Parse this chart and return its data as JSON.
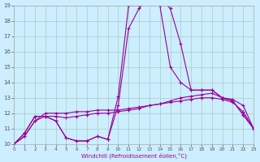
{
  "xlabel": "Windchill (Refroidissement éolien,°C)",
  "bg_color": "#cceeff",
  "line_color": "#990099",
  "grid_color": "#aaccbb",
  "xmin": 0,
  "xmax": 23,
  "ymin": 10,
  "ymax": 19,
  "line1_x": [
    0,
    1,
    2,
    3,
    4,
    5,
    6,
    7,
    8,
    9,
    10,
    11,
    12,
    13,
    14,
    15,
    16,
    17,
    18,
    19,
    20,
    21,
    22,
    23
  ],
  "line1_y": [
    10.0,
    10.7,
    11.8,
    11.8,
    11.5,
    10.4,
    10.2,
    10.2,
    10.5,
    10.3,
    13.1,
    19.0,
    19.0,
    19.3,
    19.5,
    18.8,
    16.5,
    13.5,
    13.5,
    13.5,
    13.0,
    12.8,
    11.9,
    11.0
  ],
  "line2_x": [
    0,
    1,
    2,
    3,
    4,
    5,
    6,
    7,
    8,
    9,
    10,
    11,
    12,
    13,
    14,
    15,
    16,
    17,
    18,
    19,
    20,
    21,
    22,
    23
  ],
  "line2_y": [
    10.0,
    10.7,
    11.8,
    11.8,
    11.5,
    10.4,
    10.2,
    10.2,
    10.5,
    10.3,
    12.5,
    17.5,
    18.8,
    19.5,
    19.0,
    15.0,
    14.0,
    13.5,
    13.5,
    13.5,
    13.0,
    12.8,
    11.9,
    11.0
  ],
  "line3_x": [
    0,
    1,
    2,
    3,
    4,
    5,
    6,
    7,
    8,
    9,
    10,
    11,
    12,
    13,
    14,
    15,
    16,
    17,
    18,
    19,
    20,
    21,
    22,
    23
  ],
  "line3_y": [
    10.0,
    10.5,
    11.5,
    11.8,
    11.8,
    11.7,
    11.8,
    11.9,
    12.0,
    12.0,
    12.1,
    12.2,
    12.3,
    12.5,
    12.6,
    12.8,
    13.0,
    13.1,
    13.2,
    13.3,
    13.0,
    12.9,
    12.5,
    11.0
  ],
  "line4_x": [
    0,
    1,
    2,
    3,
    4,
    5,
    6,
    7,
    8,
    9,
    10,
    11,
    12,
    13,
    14,
    15,
    16,
    17,
    18,
    19,
    20,
    21,
    22,
    23
  ],
  "line4_y": [
    10.0,
    10.5,
    11.5,
    12.0,
    12.0,
    12.0,
    12.1,
    12.1,
    12.2,
    12.2,
    12.2,
    12.3,
    12.4,
    12.5,
    12.6,
    12.7,
    12.8,
    12.9,
    13.0,
    13.0,
    12.9,
    12.7,
    12.1,
    11.0
  ]
}
